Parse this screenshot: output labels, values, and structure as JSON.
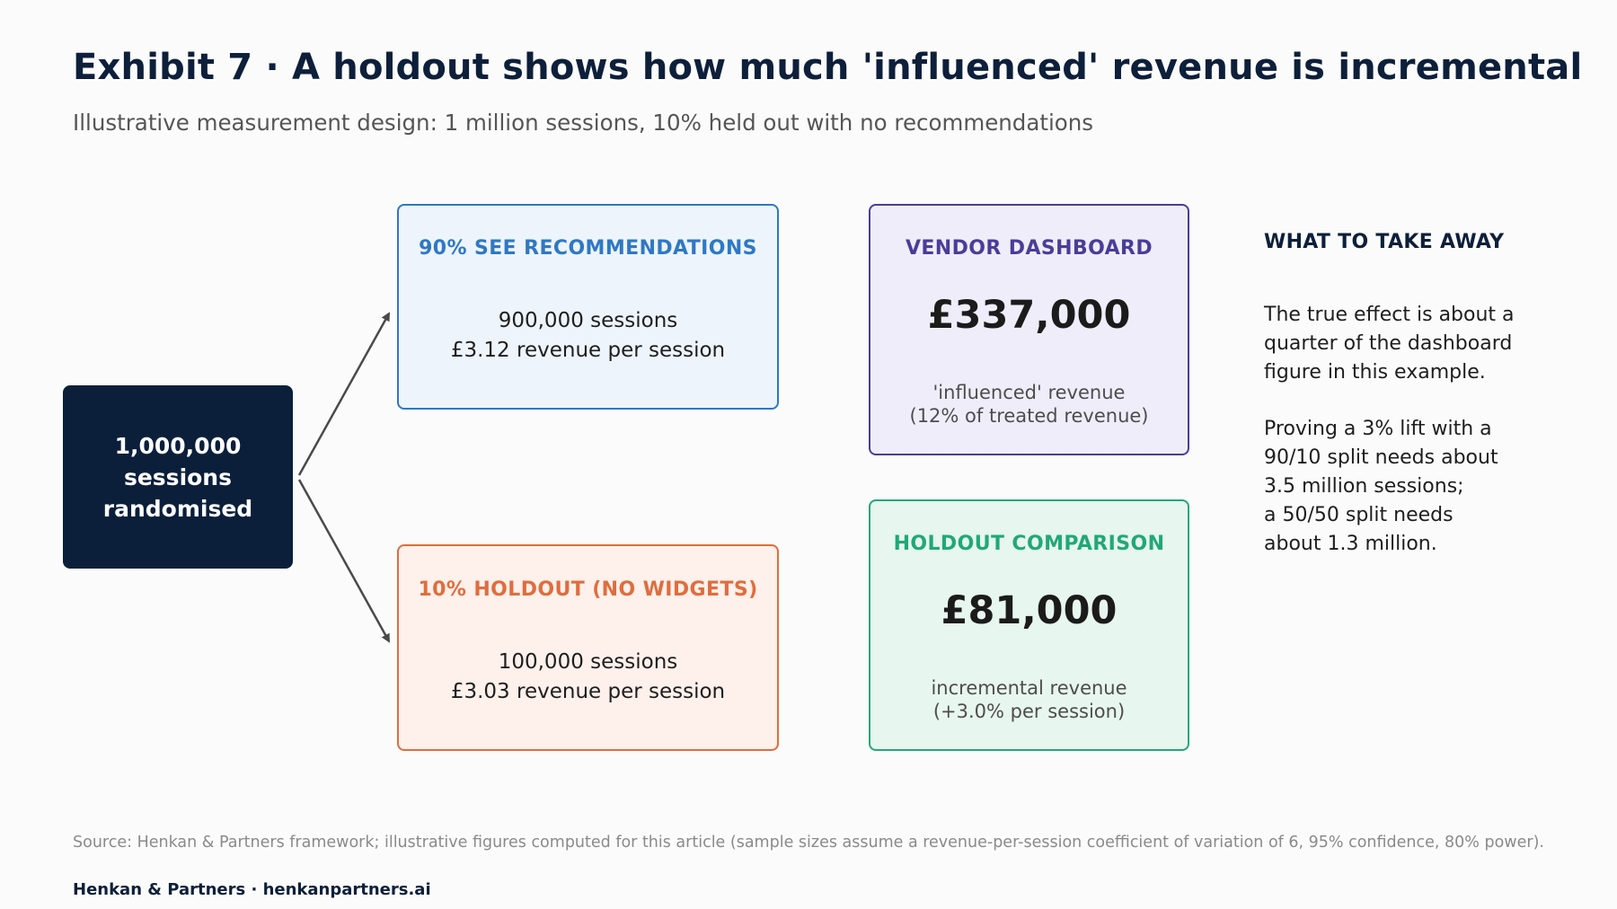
{
  "header": {
    "title": "Exhibit 7 · A holdout shows how much 'influenced' revenue is incremental",
    "subtitle": "Illustrative measurement design: 1 million sessions, 10% held out with no recommendations"
  },
  "diagram": {
    "source": {
      "lines": [
        "1,000,000",
        "sessions",
        "randomised"
      ],
      "color": "#0b1f3b"
    },
    "treatment": {
      "heading": "90% SEE RECOMMENDATIONS",
      "sessions": "900,000 sessions",
      "revenue": "£3.12 revenue per session",
      "color": "#2f78c4"
    },
    "holdout": {
      "heading": "10% HOLDOUT (NO WIDGETS)",
      "sessions": "100,000 sessions",
      "revenue": "£3.03 revenue per session",
      "color": "#e06d3d"
    },
    "vendor_dashboard": {
      "heading": "VENDOR DASHBOARD",
      "value": "£337,000",
      "note_line1": "'influenced' revenue",
      "note_line2": "(12% of treated revenue)",
      "color": "#4a3d98"
    },
    "holdout_comparison": {
      "heading": "HOLDOUT COMPARISON",
      "value": "£81,000",
      "note_line1": "incremental revenue",
      "note_line2": "(+3.0% per session)",
      "color": "#21a878"
    }
  },
  "takeaway": {
    "heading": "WHAT TO TAKE AWAY",
    "paragraph1": [
      "The true effect is about a",
      "quarter of the dashboard",
      "figure in this example."
    ],
    "paragraph2": [
      "Proving a 3% lift with a",
      "90/10 split needs about",
      "3.5 million sessions;",
      "a 50/50 split needs",
      "about 1.3 million."
    ]
  },
  "footer": {
    "source": "Source: Henkan & Partners framework; illustrative figures computed for this article (sample sizes assume a revenue-per-session coefficient of variation of 6, 95% confidence, 80% power).",
    "brand": "Henkan & Partners · henkanpartners.ai"
  }
}
